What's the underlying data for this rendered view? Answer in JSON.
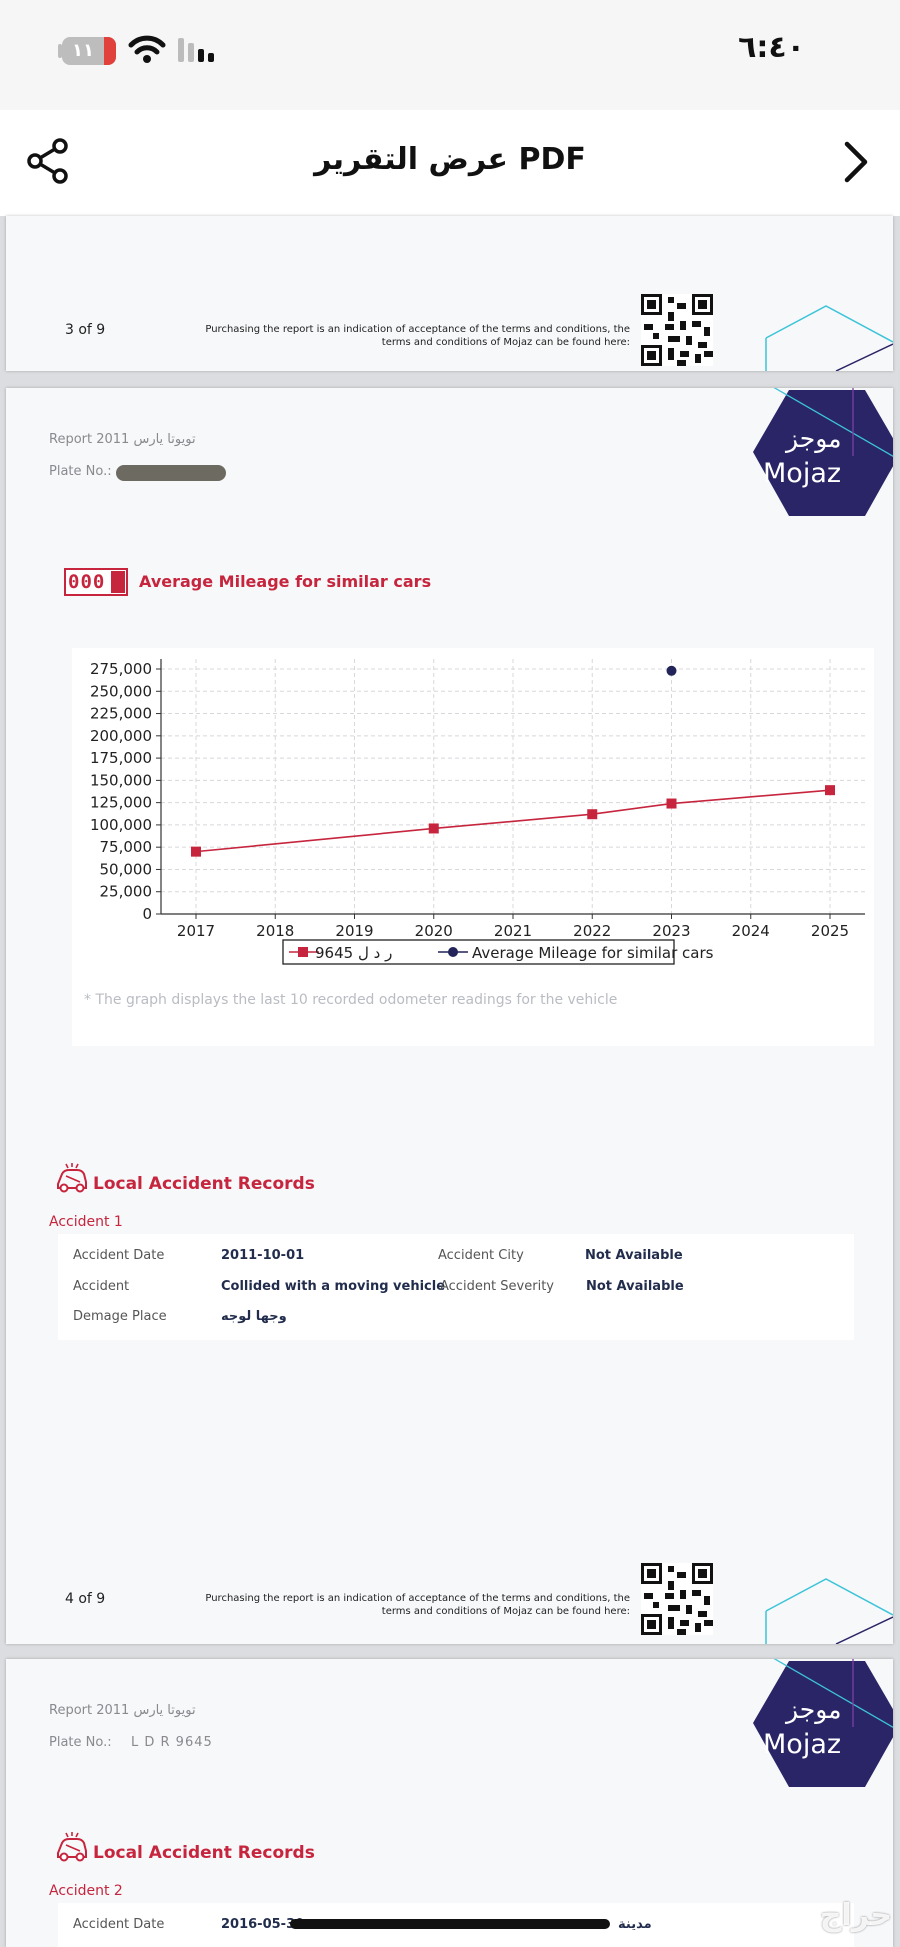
{
  "status_bar": {
    "battery": "١١",
    "time": "٦:٤٠"
  },
  "nav": {
    "title": "عرض التقرير PDF"
  },
  "page3_footer": {
    "page_number": "3 of 9",
    "terms_line1": "Purchasing the report is an indication of acceptance of the terms and conditions, the",
    "terms_line2": "terms and conditions of Mojaz can be found here:"
  },
  "page4": {
    "report_title": "Report 2011 تويوتا يارس",
    "plate_label": "Plate No.:",
    "logo_ar": "موجز",
    "logo_en": "Mojaz",
    "odometer_digits": "000",
    "mileage_title": "Average Mileage for similar cars",
    "chart_note": "* The graph displays the last 10 recorded odometer readings for the vehicle",
    "accident_section_title": "Local Accident Records",
    "accident_heading": "Accident 1",
    "accident_fields": {
      "date_label": "Accident Date",
      "date_value": "2011-10-01",
      "city_label": "Accident City",
      "city_value": "Not Available",
      "type_label": "Accident",
      "type_value": "Collided with a moving vehicle",
      "severity_label": "Accident Severity",
      "severity_value": "Not Available",
      "damage_label": "Demage Place",
      "damage_value": "وجها لوجه"
    },
    "footer": {
      "page_number": "4 of 9",
      "terms_line1": "Purchasing the report is an indication of acceptance of the terms and conditions, the",
      "terms_line2": "terms and conditions of Mojaz can be found here:"
    }
  },
  "page5": {
    "report_title": "Report 2011 تويوتا يارس",
    "plate_label": "Plate No.:",
    "plate_value": "L D R 9645",
    "logo_ar": "موجز",
    "logo_en": "Mojaz",
    "accident_section_title": "Local Accident Records",
    "accident_heading": "Accident 2",
    "date_label": "Accident Date",
    "date_value": "2016-05-30",
    "city_value_partial": "مدينة"
  },
  "watermark": "حراج",
  "colors": {
    "red": "#c6253d",
    "navy": "#2a2566",
    "teal": "#3cc4d8"
  },
  "chart_data": {
    "type": "line",
    "x": [
      "2017",
      "2018",
      "2019",
      "2020",
      "2021",
      "2022",
      "2023",
      "2024",
      "2025"
    ],
    "ylim": [
      0,
      275000
    ],
    "yticks": [
      "275,000",
      "250,000",
      "225,000",
      "200,000",
      "175,000",
      "150,000",
      "125,000",
      "100,000",
      "75,000",
      "50,000",
      "25,000",
      "0"
    ],
    "grid": true,
    "legend_position": "bottom",
    "series": [
      {
        "name": "ر د ل 9645",
        "color": "#c6253d",
        "marker": "square",
        "points": [
          [
            2017,
            70000
          ],
          [
            2020,
            96000
          ],
          [
            2022,
            112000
          ],
          [
            2023,
            124000
          ],
          [
            2025,
            139000
          ]
        ]
      },
      {
        "name": "Average Mileage for similar cars",
        "color": "#22245a",
        "marker": "circle",
        "points": [
          [
            2023,
            273000
          ]
        ]
      }
    ]
  }
}
